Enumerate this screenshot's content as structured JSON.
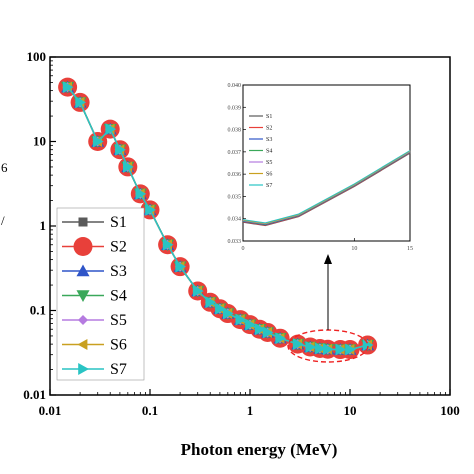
{
  "chart_data": {
    "type": "line",
    "title": "",
    "xlabel": "Photon energy (MeV)",
    "ylabel": "",
    "x_scale": "log",
    "y_scale": "log",
    "xlim": [
      0.01,
      100
    ],
    "ylim": [
      0.01,
      100
    ],
    "x_ticks": [
      "0.01",
      "0.1",
      "1",
      "10",
      "100"
    ],
    "y_ticks": [
      "0.01",
      "0.1",
      "1",
      "10",
      "100"
    ],
    "y_label_fragments": [
      "6",
      "/"
    ],
    "grid": false,
    "legend_position": "lower-left",
    "x": [
      0.015,
      0.02,
      0.03,
      0.04,
      0.05,
      0.06,
      0.08,
      0.1,
      0.15,
      0.2,
      0.3,
      0.4,
      0.5,
      0.6,
      0.8,
      1,
      1.25,
      1.5,
      2,
      3,
      4,
      5,
      6,
      8,
      10,
      15
    ],
    "series": [
      {
        "name": "S1",
        "color": "#5a5a5a",
        "marker": "square",
        "values": [
          44,
          29,
          10,
          14,
          8,
          5,
          2.4,
          1.55,
          0.6,
          0.33,
          0.17,
          0.125,
          0.105,
          0.092,
          0.078,
          0.068,
          0.06,
          0.055,
          0.047,
          0.04,
          0.037,
          0.0355,
          0.0348,
          0.0345,
          0.0345,
          0.039
        ]
      },
      {
        "name": "S2",
        "color": "#e8403a",
        "marker": "circle",
        "values": [
          44,
          29,
          10,
          14,
          8,
          5,
          2.4,
          1.55,
          0.6,
          0.33,
          0.17,
          0.125,
          0.105,
          0.092,
          0.078,
          0.068,
          0.06,
          0.055,
          0.047,
          0.04,
          0.037,
          0.0355,
          0.0348,
          0.0345,
          0.0345,
          0.039
        ]
      },
      {
        "name": "S3",
        "color": "#2f55c8",
        "marker": "triangle-up",
        "values": [
          44,
          29,
          10,
          14,
          8,
          5,
          2.4,
          1.55,
          0.6,
          0.33,
          0.17,
          0.125,
          0.105,
          0.092,
          0.078,
          0.068,
          0.06,
          0.055,
          0.047,
          0.04,
          0.037,
          0.0355,
          0.0348,
          0.0345,
          0.0345,
          0.039
        ]
      },
      {
        "name": "S4",
        "color": "#3aa85a",
        "marker": "triangle-down",
        "values": [
          44,
          29,
          10,
          14,
          8,
          5,
          2.4,
          1.55,
          0.6,
          0.33,
          0.17,
          0.125,
          0.105,
          0.092,
          0.078,
          0.068,
          0.06,
          0.055,
          0.047,
          0.04,
          0.037,
          0.0355,
          0.0348,
          0.0345,
          0.0345,
          0.039
        ]
      },
      {
        "name": "S5",
        "color": "#b57be0",
        "marker": "diamond",
        "values": [
          44,
          29,
          10,
          14,
          8,
          5,
          2.4,
          1.55,
          0.6,
          0.33,
          0.17,
          0.125,
          0.105,
          0.092,
          0.078,
          0.068,
          0.06,
          0.055,
          0.047,
          0.04,
          0.037,
          0.0355,
          0.0348,
          0.0345,
          0.0345,
          0.039
        ]
      },
      {
        "name": "S6",
        "color": "#c9a020",
        "marker": "triangle-left",
        "values": [
          44,
          29,
          10,
          14,
          8,
          5,
          2.4,
          1.55,
          0.6,
          0.33,
          0.17,
          0.125,
          0.105,
          0.092,
          0.078,
          0.068,
          0.06,
          0.055,
          0.047,
          0.04,
          0.037,
          0.0355,
          0.0348,
          0.0345,
          0.0345,
          0.039
        ]
      },
      {
        "name": "S7",
        "color": "#29c4c4",
        "marker": "triangle-right",
        "values": [
          44,
          29,
          10,
          14,
          8,
          5,
          2.4,
          1.55,
          0.6,
          0.33,
          0.17,
          0.125,
          0.105,
          0.092,
          0.078,
          0.068,
          0.06,
          0.055,
          0.047,
          0.04,
          0.037,
          0.0355,
          0.0348,
          0.0345,
          0.0345,
          0.039
        ]
      }
    ],
    "inset": {
      "xlim": [
        0,
        15
      ],
      "ylim": [
        0.033,
        0.04
      ],
      "x_ticks": [
        "0",
        "10",
        "15"
      ],
      "y_ticks": [
        "0.033",
        "0.034",
        "0.035",
        "0.036",
        "0.037",
        "0.038",
        "0.039",
        "0.040"
      ],
      "x": [
        0,
        2,
        5,
        10,
        15
      ],
      "values": [
        0.0339,
        0.03375,
        0.03415,
        0.0355,
        0.037
      ],
      "legend_position": "top-left"
    },
    "annotations": [
      "dashed ellipse around 3–15 MeV points with arrow to inset"
    ]
  }
}
